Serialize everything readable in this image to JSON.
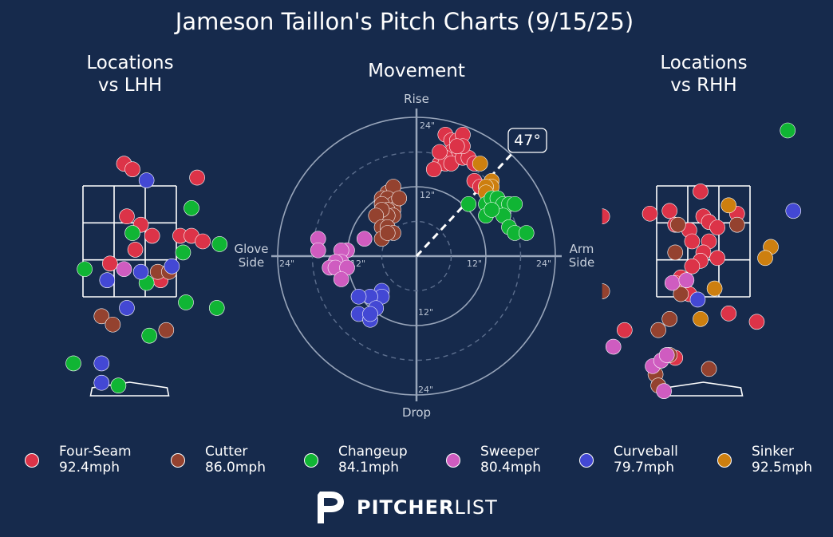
{
  "title": "Jameson Taillon's Pitch Charts (9/15/25)",
  "panels": {
    "lhh": {
      "line1": "Locations",
      "line2": "vs LHH"
    },
    "movement": {
      "title": "Movement"
    },
    "rhh": {
      "line1": "Locations",
      "line2": "vs RHH"
    }
  },
  "movement_axes": {
    "top": "Rise",
    "bottom": "Drop",
    "left_line1": "Glove",
    "left_line2": "Side",
    "right_line1": "Arm",
    "right_line2": "Side",
    "ring_labels": {
      "top_24": "24\"",
      "top_12": "12\"",
      "right_12": "12\"",
      "right_24": "24\"",
      "left_24": "24\"",
      "left_12": "12\"",
      "bottom_12": "12\"",
      "bottom_24": "24\""
    },
    "arm_angle_label": "47°",
    "arm_angle_deg": 47
  },
  "brand": {
    "logo_text_bold": "PITCHER",
    "logo_text_light": "LIST"
  },
  "colors": {
    "background": "#162a4c",
    "Four-Seam": "#dc3348",
    "Cutter": "#94422f",
    "Changeup": "#10b534",
    "Sweeper": "#cf5cc0",
    "Curveball": "#4348d4",
    "Sinker": "#cd7f0f"
  },
  "legend": [
    {
      "pitch": "Four-Seam",
      "velo": "92.4mph"
    },
    {
      "pitch": "Cutter",
      "velo": "86.0mph"
    },
    {
      "pitch": "Changeup",
      "velo": "84.1mph"
    },
    {
      "pitch": "Sweeper",
      "velo": "80.4mph"
    },
    {
      "pitch": "Curveball",
      "velo": "79.7mph"
    },
    {
      "pitch": "Sinker",
      "velo": "92.5mph"
    }
  ],
  "chart_data": [
    {
      "type": "scatter",
      "name": "movement",
      "units": "inches",
      "xlim": [
        -24,
        24
      ],
      "ylim": [
        -24,
        24
      ],
      "series": [
        {
          "pitch": "Four-Seam",
          "points": [
            [
              5,
              21
            ],
            [
              6,
              20
            ],
            [
              7,
              20
            ],
            [
              8,
              21
            ],
            [
              6,
              18
            ],
            [
              7,
              17
            ],
            [
              5,
              17
            ],
            [
              4,
              16
            ],
            [
              5,
              16
            ],
            [
              4,
              18
            ],
            [
              6,
              16
            ],
            [
              8,
              17
            ],
            [
              9,
              17
            ],
            [
              10,
              16
            ],
            [
              8,
              19
            ],
            [
              7,
              19
            ],
            [
              3,
              15
            ],
            [
              10,
              13
            ],
            [
              11,
              12
            ],
            [
              12,
              12
            ]
          ]
        },
        {
          "pitch": "Sinker",
          "points": [
            [
              11,
              16
            ],
            [
              13,
              13
            ],
            [
              13,
              12
            ],
            [
              12,
              12
            ],
            [
              12,
              11
            ]
          ]
        },
        {
          "pitch": "Changeup",
          "points": [
            [
              9,
              9
            ],
            [
              12,
              9
            ],
            [
              12,
              7
            ],
            [
              13,
              10
            ],
            [
              14,
              10
            ],
            [
              15,
              9
            ],
            [
              16,
              9
            ],
            [
              17,
              9
            ],
            [
              15,
              7
            ],
            [
              13,
              8
            ],
            [
              16,
              5
            ],
            [
              17,
              4
            ],
            [
              19,
              4
            ]
          ]
        },
        {
          "pitch": "Cutter",
          "points": [
            [
              -5,
              11
            ],
            [
              -4,
              12
            ],
            [
              -6,
              10
            ],
            [
              -5,
              10
            ],
            [
              -4,
              9
            ],
            [
              -6,
              9
            ],
            [
              -4,
              8
            ],
            [
              -5,
              8
            ],
            [
              -3,
              10
            ],
            [
              -4,
              7
            ],
            [
              -5,
              7
            ],
            [
              -6,
              8
            ],
            [
              -7,
              7
            ],
            [
              -6,
              5
            ],
            [
              -5,
              5
            ],
            [
              -4,
              4
            ],
            [
              -6,
              3
            ],
            [
              -5,
              4
            ]
          ]
        },
        {
          "pitch": "Sweeper",
          "points": [
            [
              -17,
              3
            ],
            [
              -17,
              1
            ],
            [
              -12,
              1
            ],
            [
              -13,
              1
            ],
            [
              -13,
              -1
            ],
            [
              -14,
              -1
            ],
            [
              -15,
              -2
            ],
            [
              -14,
              -2
            ],
            [
              -12,
              -2
            ],
            [
              -13,
              -4
            ],
            [
              -9,
              3
            ]
          ]
        },
        {
          "pitch": "Curveball",
          "points": [
            [
              -6,
              -6
            ],
            [
              -6,
              -7
            ],
            [
              -8,
              -7
            ],
            [
              -10,
              -7
            ],
            [
              -7,
              -9
            ],
            [
              -10,
              -10
            ],
            [
              -8,
              -11
            ],
            [
              -8,
              -10
            ]
          ]
        }
      ]
    },
    {
      "type": "scatter",
      "name": "locations_vs_lhh",
      "units": "feet",
      "xlim": [
        -2.1,
        1.8
      ],
      "ylim": [
        -0.2,
        4.6
      ],
      "strike_zone": {
        "x": [
          -0.83,
          0.83
        ],
        "z": [
          1.5,
          3.5
        ]
      },
      "series": [
        {
          "pitch": "Four-Seam",
          "points": [
            [
              -0.1,
              3.9
            ],
            [
              0.05,
              3.8
            ],
            [
              1.2,
              3.65
            ],
            [
              -0.05,
              2.95
            ],
            [
              0.2,
              2.8
            ],
            [
              0.4,
              2.6
            ],
            [
              0.9,
              2.6
            ],
            [
              1.1,
              2.6
            ],
            [
              1.3,
              2.5
            ],
            [
              0.1,
              2.35
            ],
            [
              -0.35,
              2.1
            ],
            [
              0.55,
              1.8
            ]
          ]
        },
        {
          "pitch": "Cutter",
          "points": [
            [
              0.5,
              1.95
            ],
            [
              0.7,
              1.95
            ],
            [
              -0.5,
              1.15
            ],
            [
              -0.3,
              1.0
            ],
            [
              0.65,
              0.9
            ]
          ]
        },
        {
          "pitch": "Changeup",
          "points": [
            [
              1.1,
              3.1
            ],
            [
              0.05,
              2.65
            ],
            [
              1.6,
              2.45
            ],
            [
              0.95,
              2.3
            ],
            [
              -0.8,
              2.0
            ],
            [
              0.3,
              1.75
            ],
            [
              1.0,
              1.4
            ],
            [
              1.55,
              1.3
            ],
            [
              -1.0,
              0.3
            ],
            [
              0.35,
              0.8
            ],
            [
              -0.2,
              -0.1
            ]
          ]
        },
        {
          "pitch": "Sweeper",
          "points": [
            [
              -0.1,
              2.0
            ]
          ]
        },
        {
          "pitch": "Curveball",
          "points": [
            [
              0.3,
              3.6
            ],
            [
              0.75,
              2.05
            ],
            [
              0.2,
              1.95
            ],
            [
              -0.4,
              1.8
            ],
            [
              -0.05,
              1.3
            ],
            [
              -0.5,
              0.3
            ],
            [
              -0.5,
              -0.05
            ]
          ]
        }
      ]
    },
    {
      "type": "scatter",
      "name": "locations_vs_rhh",
      "units": "feet",
      "xlim": [
        -1.8,
        2.1
      ],
      "ylim": [
        -0.2,
        4.6
      ],
      "strike_zone": {
        "x": [
          -0.83,
          0.83
        ],
        "z": [
          1.5,
          3.5
        ]
      },
      "series": [
        {
          "pitch": "Four-Seam",
          "points": [
            [
              -0.05,
              3.4
            ],
            [
              0.0,
              2.95
            ],
            [
              0.1,
              2.85
            ],
            [
              -1.8,
              2.95
            ],
            [
              -0.95,
              3.0
            ],
            [
              -0.6,
              3.05
            ],
            [
              -0.5,
              2.8
            ],
            [
              0.1,
              2.5
            ],
            [
              0.25,
              2.75
            ],
            [
              0.6,
              3.0
            ],
            [
              -0.25,
              2.7
            ],
            [
              -0.2,
              2.5
            ],
            [
              0.0,
              2.3
            ],
            [
              -0.05,
              2.15
            ],
            [
              -0.2,
              2.05
            ],
            [
              -0.4,
              1.85
            ],
            [
              -0.5,
              1.75
            ],
            [
              0.25,
              2.2
            ],
            [
              -1.4,
              0.9
            ],
            [
              -0.5,
              0.4
            ],
            [
              0.45,
              1.2
            ],
            [
              0.95,
              1.05
            ],
            [
              -0.25,
              1.55
            ]
          ]
        },
        {
          "pitch": "Cutter",
          "points": [
            [
              -0.45,
              2.8
            ],
            [
              -0.5,
              2.3
            ],
            [
              -0.4,
              1.55
            ],
            [
              -0.6,
              1.1
            ],
            [
              -0.8,
              0.9
            ],
            [
              -0.6,
              0.45
            ],
            [
              -0.85,
              0.1
            ],
            [
              -0.8,
              -0.1
            ],
            [
              0.1,
              0.2
            ],
            [
              0.6,
              2.8
            ],
            [
              -1.8,
              1.6
            ]
          ]
        },
        {
          "pitch": "Changeup",
          "points": [
            [
              1.5,
              4.5
            ]
          ]
        },
        {
          "pitch": "Sweeper",
          "points": [
            [
              -0.55,
              1.75
            ],
            [
              -0.3,
              1.8
            ],
            [
              -1.6,
              0.6
            ],
            [
              -0.9,
              0.25
            ],
            [
              -0.75,
              0.35
            ],
            [
              -0.7,
              -0.2
            ],
            [
              -0.65,
              0.45
            ]
          ]
        },
        {
          "pitch": "Curveball",
          "points": [
            [
              -0.1,
              1.45
            ],
            [
              1.6,
              3.05
            ]
          ]
        },
        {
          "pitch": "Sinker",
          "points": [
            [
              0.45,
              3.15
            ],
            [
              1.2,
              2.4
            ],
            [
              1.1,
              2.2
            ],
            [
              0.2,
              1.65
            ],
            [
              -0.05,
              1.1
            ]
          ]
        }
      ]
    }
  ]
}
